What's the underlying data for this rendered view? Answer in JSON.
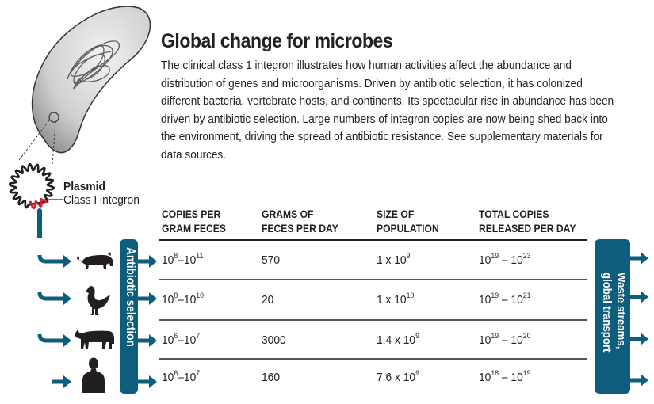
{
  "figure": {
    "title": "Global change for microbes",
    "intro": "The clinical class 1 integron illustrates how human activities affect the abundance and distribution of genes and microorganisms. Driven by antibiotic selection, it has colonized different bacteria, vertebrate hosts, and continents. Its spectacular rise in abundance has been driven by antibiotic selection. Large numbers of integron copies are now being shed back into the environment, driving the spread of antibiotic resistance. See supplementary materials for data sources.",
    "plasmid_label": "Plasmid",
    "integron_label": "Class I integron",
    "selection_box_label": "Antibiotic selection",
    "waste_box_label_line1": "Waste streams,",
    "waste_box_label_line2": "global transport",
    "accent_color": "#0f5d7d",
    "integron_color": "#d0202a"
  },
  "table": {
    "headers": [
      {
        "line1": "COPIES PER",
        "line2": "GRAM FECES"
      },
      {
        "line1": "GRAMS OF",
        "line2": "FECES PER DAY"
      },
      {
        "line1": "SIZE OF",
        "line2": "POPULATION"
      },
      {
        "line1": "TOTAL COPIES",
        "line2": "RELEASED PER DAY"
      }
    ],
    "rows": [
      {
        "host": "pig-icon",
        "copies": {
          "base1": "10",
          "exp1": "8",
          "base2": "10",
          "exp2": "11"
        },
        "grams": "570",
        "population": {
          "coef": "1 x 10",
          "exp": "9"
        },
        "total": {
          "base1": "10",
          "exp1": "19",
          "base2": "10",
          "exp2": "23"
        }
      },
      {
        "host": "chicken-icon",
        "copies": {
          "base1": "10",
          "exp1": "8",
          "base2": "10",
          "exp2": "10"
        },
        "grams": "20",
        "population": {
          "coef": "1 x 10",
          "exp": "10"
        },
        "total": {
          "base1": "10",
          "exp1": "19",
          "base2": "10",
          "exp2": "21"
        }
      },
      {
        "host": "cow-icon",
        "copies": {
          "base1": "10",
          "exp1": "6",
          "base2": "10",
          "exp2": "7"
        },
        "grams": "3000",
        "population": {
          "coef": "1.4 x 10",
          "exp": "9"
        },
        "total": {
          "base1": "10",
          "exp1": "19",
          "base2": "10",
          "exp2": "20"
        }
      },
      {
        "host": "human-icon",
        "copies": {
          "base1": "10",
          "exp1": "6",
          "base2": "10",
          "exp2": "7"
        },
        "grams": "160",
        "population": {
          "coef": "7.6 x 10",
          "exp": "9"
        },
        "total": {
          "base1": "10",
          "exp1": "18",
          "base2": "10",
          "exp2": "19"
        }
      }
    ],
    "dash": "–"
  }
}
